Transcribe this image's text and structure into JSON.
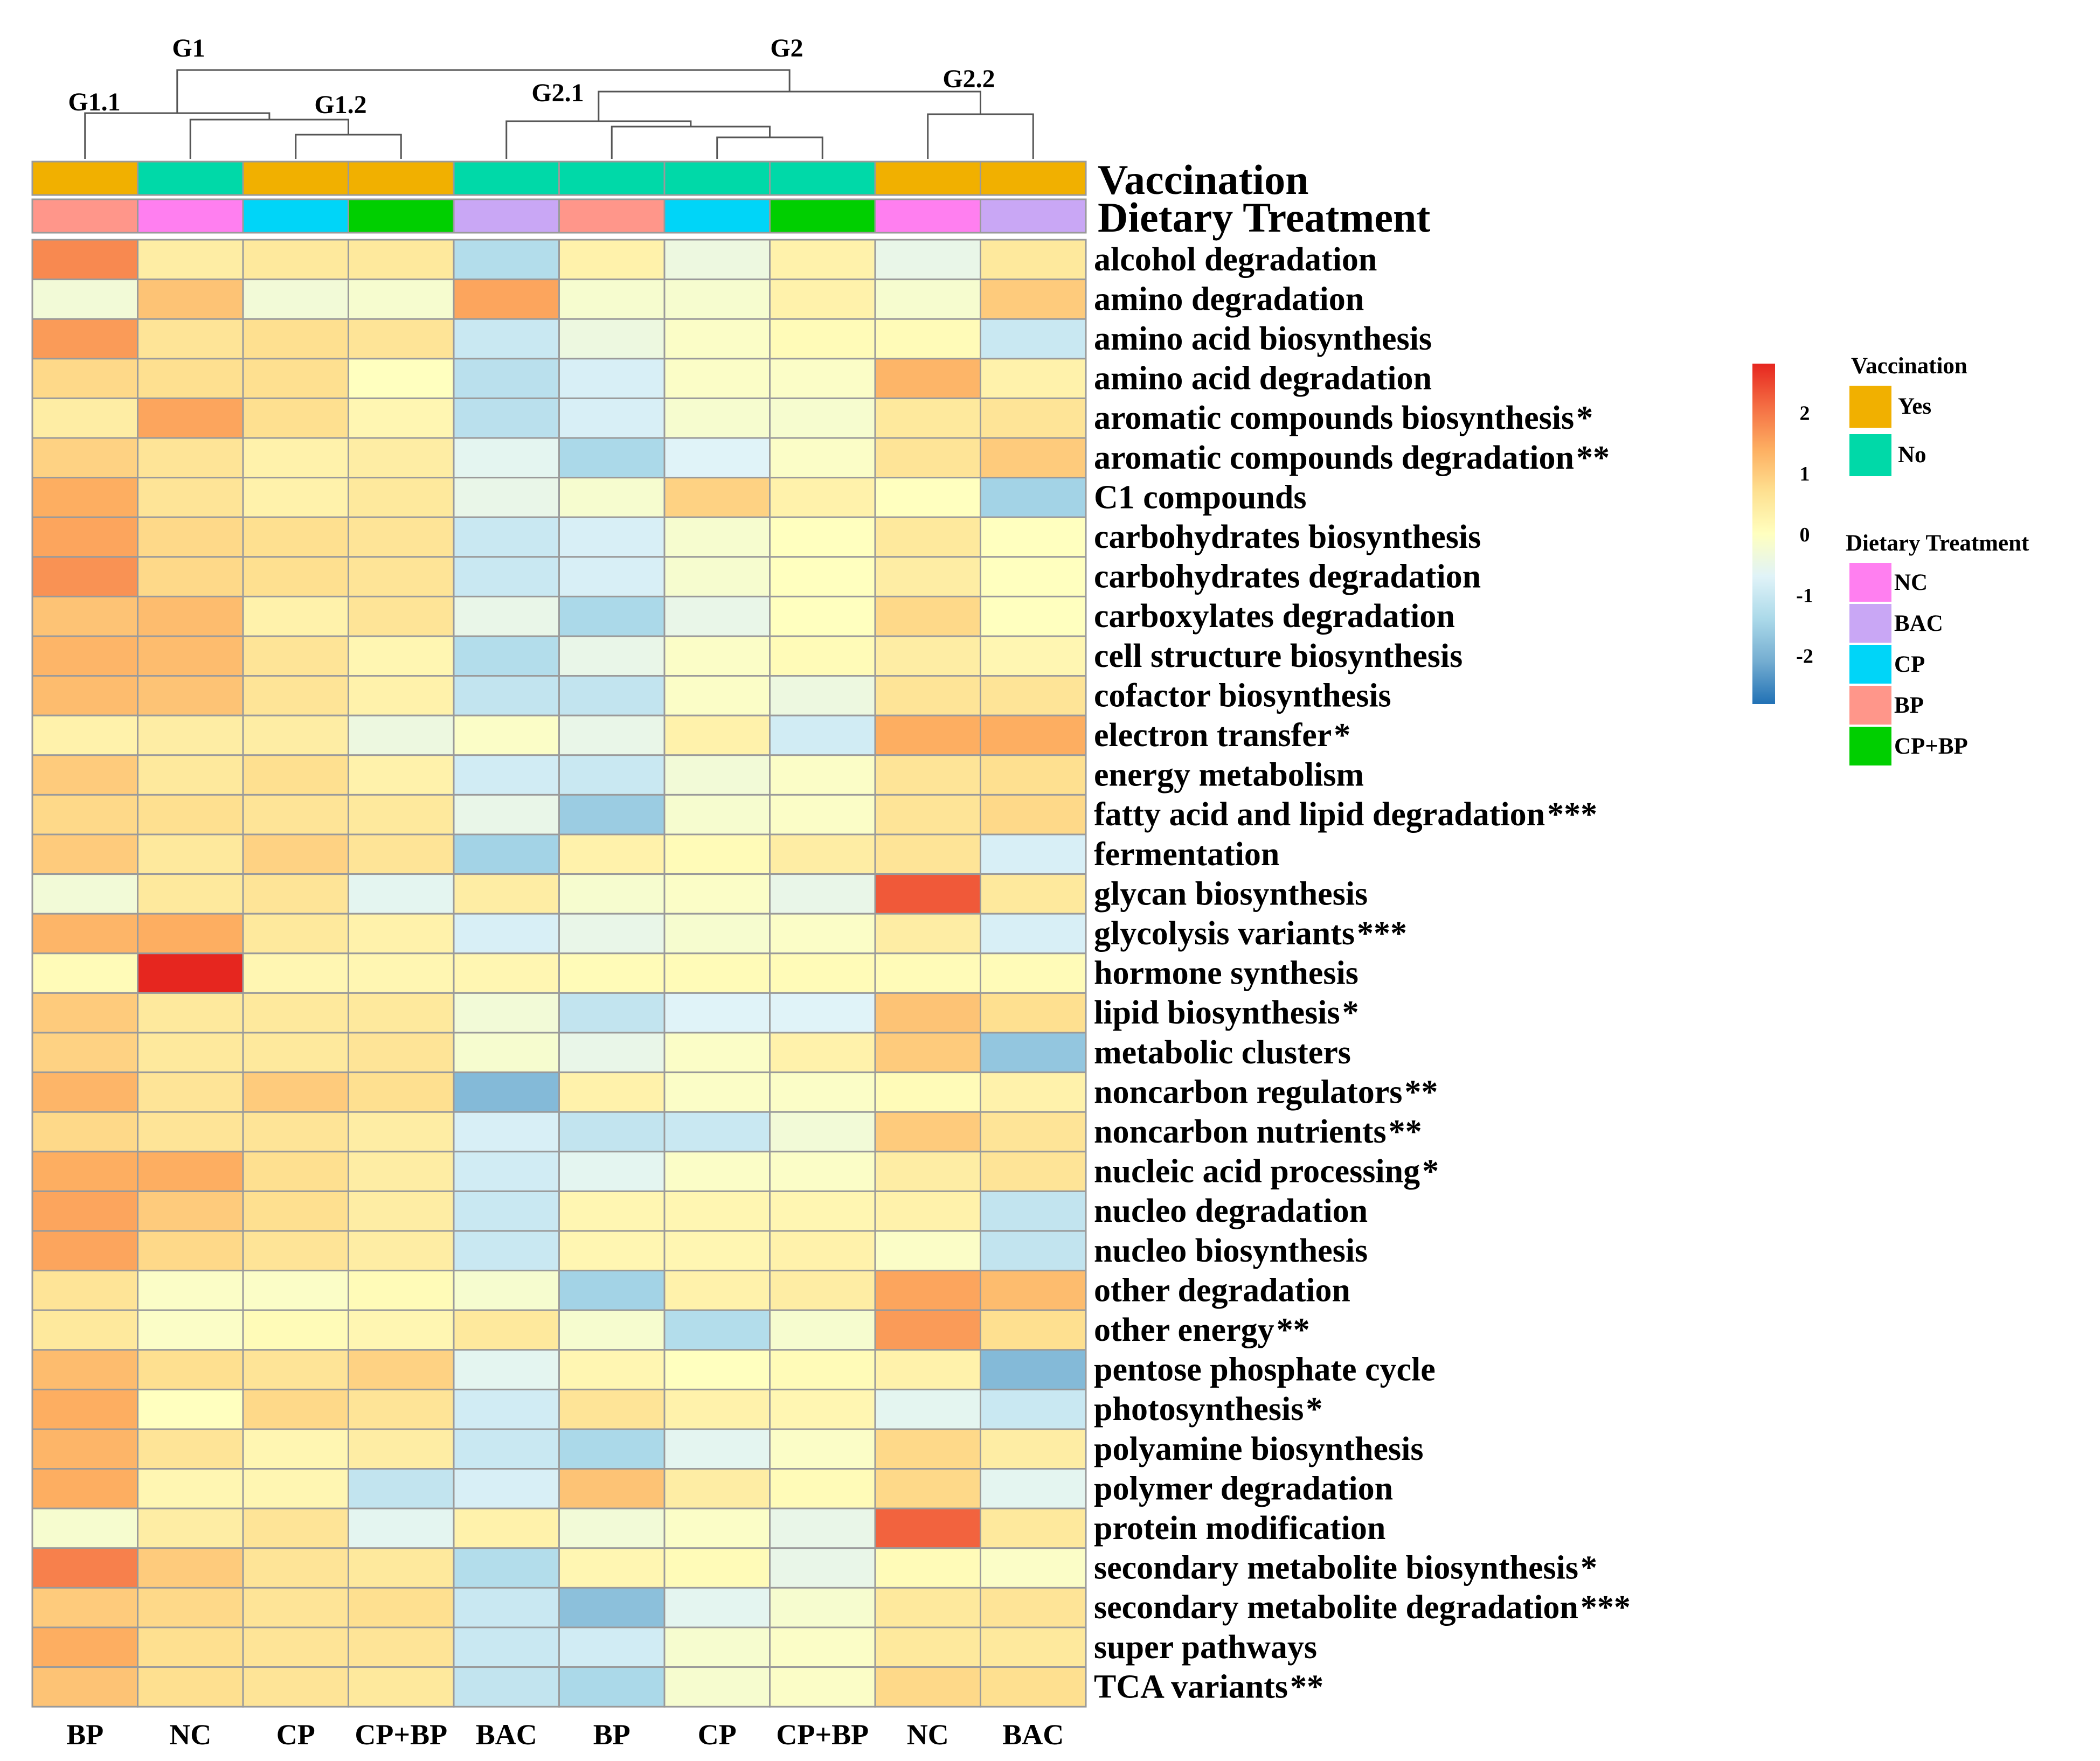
{
  "chart_data": {
    "type": "heatmap",
    "title": "",
    "columns": [
      {
        "treatment": "BP",
        "vaccination": "Yes"
      },
      {
        "treatment": "NC",
        "vaccination": "No"
      },
      {
        "treatment": "CP",
        "vaccination": "Yes"
      },
      {
        "treatment": "CP+BP",
        "vaccination": "Yes"
      },
      {
        "treatment": "BAC",
        "vaccination": "No"
      },
      {
        "treatment": "BP",
        "vaccination": "No"
      },
      {
        "treatment": "CP",
        "vaccination": "No"
      },
      {
        "treatment": "CP+BP",
        "vaccination": "No"
      },
      {
        "treatment": "NC",
        "vaccination": "Yes"
      },
      {
        "treatment": "BAC",
        "vaccination": "Yes"
      }
    ],
    "column_labels_treatment": [
      "BP",
      "NC",
      "CP",
      "CP+BP",
      "BAC",
      "BP",
      "CP",
      "CP+BP",
      "NC",
      "BAC"
    ],
    "column_labels_vaccination": [
      "Yes",
      "No",
      "Yes",
      "Yes",
      "No",
      "No",
      "No",
      "No",
      "Yes",
      "Yes"
    ],
    "annotation_rows": [
      "Vaccination",
      "Dietary Treatment"
    ],
    "rows": [
      {
        "label": "alcohol degradation",
        "sig": ""
      },
      {
        "label": "amino degradation",
        "sig": ""
      },
      {
        "label": "amino acid biosynthesis",
        "sig": ""
      },
      {
        "label": "amino acid degradation",
        "sig": ""
      },
      {
        "label": "aromatic compounds biosynthesis",
        "sig": "*"
      },
      {
        "label": "aromatic compounds degradation",
        "sig": "**"
      },
      {
        "label": "C1 compounds",
        "sig": ""
      },
      {
        "label": "carbohydrates biosynthesis",
        "sig": ""
      },
      {
        "label": "carbohydrates degradation",
        "sig": ""
      },
      {
        "label": "carboxylates degradation",
        "sig": ""
      },
      {
        "label": "cell structure biosynthesis",
        "sig": ""
      },
      {
        "label": "cofactor biosynthesis",
        "sig": ""
      },
      {
        "label": "electron transfer",
        "sig": "*"
      },
      {
        "label": "energy metabolism",
        "sig": ""
      },
      {
        "label": "fatty acid and lipid degradation",
        "sig": "***"
      },
      {
        "label": "fermentation",
        "sig": ""
      },
      {
        "label": "glycan biosynthesis",
        "sig": ""
      },
      {
        "label": "glycolysis variants",
        "sig": "***"
      },
      {
        "label": "hormone synthesis",
        "sig": ""
      },
      {
        "label": "lipid biosynthesis",
        "sig": "*"
      },
      {
        "label": "metabolic clusters",
        "sig": ""
      },
      {
        "label": "noncarbon regulators",
        "sig": "**"
      },
      {
        "label": "noncarbon nutrients",
        "sig": "**"
      },
      {
        "label": "nucleic acid processing",
        "sig": "*"
      },
      {
        "label": "nucleo degradation",
        "sig": ""
      },
      {
        "label": "nucleo biosynthesis",
        "sig": ""
      },
      {
        "label": "other degradation",
        "sig": ""
      },
      {
        "label": "other energy",
        "sig": "**"
      },
      {
        "label": "pentose phosphate cycle",
        "sig": ""
      },
      {
        "label": "photosynthesis",
        "sig": "*"
      },
      {
        "label": "polyamine biosynthesis",
        "sig": ""
      },
      {
        "label": "polymer degradation",
        "sig": ""
      },
      {
        "label": "protein modification",
        "sig": ""
      },
      {
        "label": "secondary metabolite biosynthesis",
        "sig": "*"
      },
      {
        "label": "secondary metabolite degradation",
        "sig": "***"
      },
      {
        "label": "super pathways",
        "sig": ""
      },
      {
        "label": "TCA variants",
        "sig": "**"
      }
    ],
    "values": [
      [
        1.8,
        0.4,
        0.5,
        0.5,
        -1.3,
        0.3,
        -0.4,
        0.3,
        -0.5,
        0.5
      ],
      [
        -0.3,
        1.1,
        -0.3,
        -0.2,
        1.5,
        -0.2,
        -0.2,
        0.3,
        -0.2,
        1.0
      ],
      [
        1.6,
        0.6,
        0.7,
        0.6,
        -1.0,
        -0.4,
        -0.1,
        0.1,
        0.1,
        -1.0
      ],
      [
        0.8,
        0.7,
        0.7,
        0.0,
        -1.2,
        -0.8,
        -0.1,
        -0.1,
        1.3,
        0.3
      ],
      [
        0.4,
        1.5,
        0.7,
        0.2,
        -1.2,
        -0.8,
        -0.2,
        -0.2,
        0.5,
        0.6
      ],
      [
        0.9,
        0.6,
        0.3,
        0.4,
        -0.6,
        -1.4,
        -0.7,
        -0.1,
        0.6,
        1.0
      ],
      [
        1.4,
        0.6,
        0.3,
        0.5,
        -0.5,
        -0.2,
        0.9,
        0.3,
        0.0,
        -1.5
      ],
      [
        1.5,
        0.8,
        0.7,
        0.6,
        -1.0,
        -0.8,
        -0.2,
        0.0,
        0.5,
        0.0
      ],
      [
        1.7,
        0.8,
        0.7,
        0.6,
        -1.0,
        -0.8,
        -0.2,
        0.0,
        0.4,
        0.0
      ],
      [
        1.1,
        1.2,
        0.3,
        0.6,
        -0.5,
        -1.4,
        -0.5,
        0.0,
        0.8,
        0.0
      ],
      [
        1.3,
        1.2,
        0.6,
        0.2,
        -1.3,
        -0.5,
        -0.1,
        0.1,
        0.4,
        0.2
      ],
      [
        1.2,
        1.1,
        0.6,
        0.3,
        -1.1,
        -1.1,
        -0.1,
        -0.4,
        0.6,
        0.6
      ],
      [
        0.3,
        0.4,
        0.4,
        -0.4,
        -0.1,
        -0.5,
        0.3,
        -0.9,
        1.4,
        1.4
      ],
      [
        1.0,
        0.5,
        0.7,
        0.3,
        -0.9,
        -1.0,
        -0.3,
        -0.1,
        0.6,
        0.7
      ],
      [
        0.8,
        0.7,
        0.6,
        0.5,
        -0.5,
        -1.6,
        -0.2,
        -0.1,
        0.6,
        0.8
      ],
      [
        1.0,
        0.5,
        0.9,
        0.6,
        -1.5,
        0.3,
        0.1,
        0.4,
        0.6,
        -0.8
      ],
      [
        -0.3,
        0.5,
        0.6,
        -0.6,
        0.4,
        -0.2,
        -0.1,
        -0.5,
        2.3,
        0.5
      ],
      [
        1.3,
        1.4,
        0.5,
        0.3,
        -0.8,
        -0.5,
        -0.2,
        -0.1,
        0.4,
        -0.8
      ],
      [
        0.1,
        2.8,
        0.2,
        0.2,
        0.2,
        0.1,
        0.1,
        0.1,
        0.1,
        0.1
      ],
      [
        1.0,
        0.5,
        0.5,
        0.5,
        -0.3,
        -1.1,
        -0.7,
        -0.7,
        1.1,
        0.7
      ],
      [
        0.9,
        0.5,
        0.5,
        0.6,
        -0.2,
        -0.5,
        -0.1,
        0.3,
        1.0,
        -1.7
      ],
      [
        1.3,
        0.6,
        1.0,
        0.7,
        -1.9,
        0.3,
        -0.1,
        -0.1,
        0.1,
        0.3
      ],
      [
        0.8,
        0.6,
        0.6,
        0.4,
        -0.8,
        -1.1,
        -1.0,
        -0.3,
        1.0,
        0.6
      ],
      [
        1.4,
        1.4,
        0.7,
        0.4,
        -0.9,
        -0.6,
        -0.1,
        -0.1,
        0.4,
        0.6
      ],
      [
        1.5,
        1.0,
        0.7,
        0.4,
        -1.0,
        0.2,
        0.2,
        0.2,
        0.3,
        -1.1
      ],
      [
        1.5,
        0.8,
        0.6,
        0.4,
        -1.0,
        0.2,
        0.2,
        0.3,
        -0.1,
        -1.1
      ],
      [
        0.6,
        -0.1,
        -0.1,
        0.1,
        -0.2,
        -1.5,
        0.3,
        0.4,
        1.5,
        1.2
      ],
      [
        0.5,
        -0.1,
        0.1,
        0.2,
        0.5,
        -0.2,
        -1.3,
        -0.2,
        1.6,
        0.7
      ],
      [
        1.2,
        0.7,
        0.6,
        0.9,
        -0.6,
        0.2,
        0.0,
        0.1,
        0.3,
        -1.9
      ],
      [
        1.4,
        0.0,
        0.8,
        0.6,
        -0.9,
        0.6,
        0.3,
        0.2,
        -0.6,
        -1.0
      ],
      [
        1.3,
        0.6,
        0.2,
        0.4,
        -1.0,
        -1.4,
        -0.6,
        -0.1,
        0.8,
        0.4
      ],
      [
        1.4,
        0.2,
        0.2,
        -1.1,
        -0.8,
        1.1,
        0.4,
        0.1,
        0.8,
        -0.6
      ],
      [
        -0.2,
        0.4,
        0.6,
        -0.6,
        0.3,
        -0.3,
        -0.1,
        -0.5,
        2.2,
        0.5
      ],
      [
        1.9,
        1.0,
        0.6,
        0.5,
        -1.3,
        0.2,
        0.1,
        -0.5,
        0.1,
        -0.1
      ],
      [
        1.0,
        0.8,
        0.6,
        0.7,
        -1.0,
        -1.8,
        -0.6,
        -0.2,
        0.5,
        0.6
      ],
      [
        1.4,
        0.7,
        0.6,
        0.6,
        -1.0,
        -0.9,
        -0.2,
        -0.1,
        0.5,
        0.5
      ],
      [
        1.1,
        0.7,
        0.6,
        0.5,
        -1.1,
        -1.4,
        -0.2,
        -0.1,
        0.8,
        0.7
      ]
    ],
    "color_scale": {
      "min": -2.8,
      "max": 2.8,
      "ticks": [
        2,
        1,
        0,
        -1,
        -2
      ],
      "colors": [
        "#2171b5",
        "#74add1",
        "#abd9e9",
        "#e0f3f8",
        "#ffffbf",
        "#fee090",
        "#fdae61",
        "#f46d43",
        "#e6261f"
      ]
    },
    "dendrogram": {
      "labels": {
        "G1": "G1",
        "G1_1": "G1.1",
        "G1_2": "G1.2",
        "G2": "G2",
        "G2_1": "G2.1",
        "G2_2": "G2.2"
      }
    }
  },
  "legend": {
    "vaccination": {
      "title": "Vaccination",
      "items": [
        {
          "label": "Yes",
          "color": "#f1b000"
        },
        {
          "label": "No",
          "color": "#00d9a8"
        }
      ]
    },
    "dietary": {
      "title": "Dietary Treatment",
      "items": [
        {
          "label": "NC",
          "color": "#ff7ff0"
        },
        {
          "label": "BAC",
          "color": "#c9a7f5"
        },
        {
          "label": "CP",
          "color": "#00d5f8"
        },
        {
          "label": "BP",
          "color": "#ff968a"
        },
        {
          "label": "CP+BP",
          "color": "#00cf00"
        }
      ]
    }
  },
  "colors": {
    "cell_border": "#9a9a9a",
    "dendrogram_line": "#555555"
  }
}
